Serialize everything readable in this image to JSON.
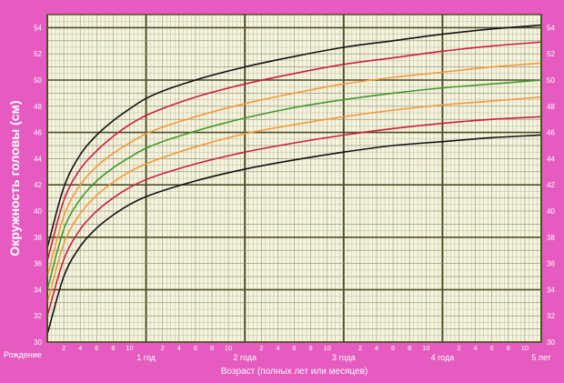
{
  "chart_data": {
    "type": "line",
    "ylabel": "Окружность головы (см)",
    "xlabel": "Возраст (полных лет или месяцев)",
    "birth_label": "Рождение",
    "ylim": [
      30,
      55
    ],
    "y_ticks": [
      30,
      32,
      34,
      36,
      38,
      40,
      42,
      44,
      46,
      48,
      50,
      52,
      54
    ],
    "xlim": [
      0,
      60
    ],
    "x_unit": "months",
    "x_major": [
      {
        "months": 12,
        "label": "1 год"
      },
      {
        "months": 24,
        "label": "2 года"
      },
      {
        "months": 36,
        "label": "3 года"
      },
      {
        "months": 48,
        "label": "4 года"
      },
      {
        "months": 60,
        "label": "5 лет"
      }
    ],
    "x_minor_labels": [
      "2",
      "4",
      "6",
      "8",
      "10"
    ],
    "grid": true,
    "colors": {
      "background": "#e55bbf",
      "plot": "#f6f4dc",
      "grid_minor": "#8a8a7a",
      "grid_major": "#4e4e2a",
      "tick_text": "#ffffff"
    },
    "x": [
      0,
      2,
      4,
      6,
      8,
      10,
      12,
      18,
      24,
      30,
      36,
      42,
      48,
      54,
      60
    ],
    "series": [
      {
        "color": "#111111",
        "values": [
          37.2,
          41.8,
          44.3,
          45.8,
          46.9,
          47.8,
          48.6,
          50.0,
          51.0,
          51.8,
          52.5,
          53.0,
          53.5,
          53.9,
          54.2
        ]
      },
      {
        "color": "#cc1f3c",
        "values": [
          36.2,
          40.8,
          43.2,
          44.6,
          45.7,
          46.6,
          47.3,
          48.7,
          49.7,
          50.5,
          51.2,
          51.7,
          52.2,
          52.6,
          52.9
        ]
      },
      {
        "color": "#f39a3a",
        "values": [
          35.0,
          39.6,
          42.0,
          43.4,
          44.4,
          45.2,
          45.9,
          47.2,
          48.2,
          49.0,
          49.7,
          50.2,
          50.6,
          51.0,
          51.3
        ]
      },
      {
        "color": "#3f9a2a",
        "values": [
          34.0,
          38.6,
          40.9,
          42.3,
          43.3,
          44.1,
          44.8,
          46.1,
          47.1,
          47.9,
          48.5,
          49.0,
          49.4,
          49.7,
          50.0
        ]
      },
      {
        "color": "#f39a3a",
        "values": [
          33.0,
          37.5,
          39.8,
          41.2,
          42.2,
          43.0,
          43.6,
          44.9,
          45.9,
          46.6,
          47.2,
          47.7,
          48.1,
          48.4,
          48.7
        ]
      },
      {
        "color": "#cc1f3c",
        "values": [
          32.0,
          36.3,
          38.6,
          40.0,
          41.0,
          41.8,
          42.4,
          43.6,
          44.5,
          45.2,
          45.8,
          46.3,
          46.7,
          47.0,
          47.2
        ]
      },
      {
        "color": "#111111",
        "values": [
          30.6,
          35.0,
          37.3,
          38.7,
          39.7,
          40.5,
          41.1,
          42.3,
          43.2,
          43.9,
          44.5,
          45.0,
          45.3,
          45.6,
          45.8
        ]
      }
    ]
  }
}
